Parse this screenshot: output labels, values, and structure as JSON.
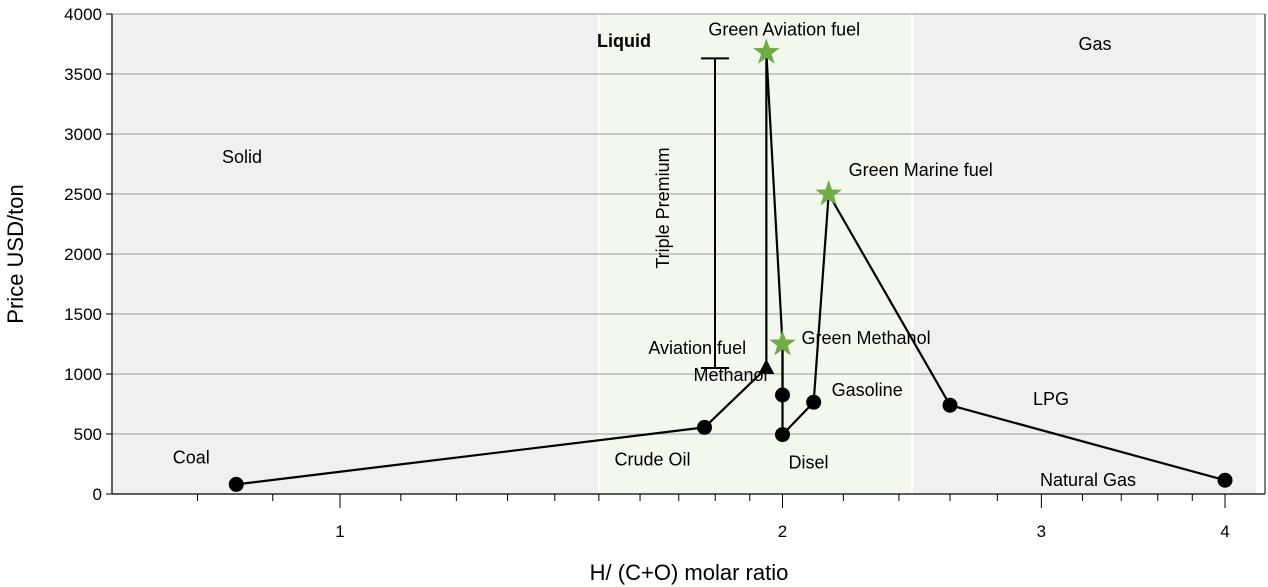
{
  "chart_data": {
    "type": "scatter",
    "xlabel": "H/ (C+O) molar ratio",
    "ylabel": "Price USD/ton",
    "x_scale": "log",
    "xlim": [
      0.6,
      4.2
    ],
    "ylim": [
      0,
      4000
    ],
    "x_ticks": [
      "1",
      "2",
      "3",
      "4"
    ],
    "y_ticks": [
      "0",
      "500",
      "1000",
      "1500",
      "2000",
      "2500",
      "3000",
      "3500",
      "4000"
    ],
    "grid": "horizontal",
    "regions": [
      {
        "label": "Solid",
        "x_from": 0.6,
        "x_to": 1.5,
        "color": "#f0f0f0"
      },
      {
        "label": "Liquid",
        "x_from": 1.5,
        "x_to": 2.45,
        "color": "#f2f8ee"
      },
      {
        "label": "Gas",
        "x_from": 2.45,
        "x_to": 4.2,
        "color": "#f0f0f0"
      }
    ],
    "series": [
      {
        "marker": "circle",
        "color": "#000000",
        "points": [
          {
            "label": "Coal",
            "x": 0.85,
            "y": 80
          },
          {
            "label": "Crude Oil",
            "x": 1.77,
            "y": 555
          },
          {
            "label": "Methanol",
            "x": 2.0,
            "y": 825
          },
          {
            "label": "Disel",
            "x": 2.0,
            "y": 495
          },
          {
            "label": "Gasoline",
            "x": 2.1,
            "y": 765
          },
          {
            "label": "LPG",
            "x": 2.6,
            "y": 740
          },
          {
            "label": "Natural Gas",
            "x": 4.0,
            "y": 115
          }
        ]
      },
      {
        "marker": "triangle",
        "color": "#000000",
        "points": [
          {
            "label": "Aviation fuel",
            "x": 1.95,
            "y": 1050
          }
        ]
      },
      {
        "marker": "star",
        "color": "#70ad47",
        "points": [
          {
            "label": "Green Aviation fuel",
            "x": 1.95,
            "y": 3680
          },
          {
            "label": "Green Marine fuel",
            "x": 2.15,
            "y": 2500
          },
          {
            "label": "Green Methanol",
            "x": 2.0,
            "y": 1250
          }
        ]
      }
    ],
    "connections": [
      [
        "Coal",
        "Crude Oil"
      ],
      [
        "Crude Oil",
        "Aviation fuel"
      ],
      [
        "Aviation fuel",
        "Green Aviation fuel"
      ],
      [
        "Green Aviation fuel",
        "Green Methanol"
      ],
      [
        "Green Methanol",
        "Disel"
      ],
      [
        "Methanol",
        "Green Methanol"
      ],
      [
        "Disel",
        "Gasoline"
      ],
      [
        "Gasoline",
        "Green Marine fuel"
      ],
      [
        "Green Marine fuel",
        "LPG"
      ],
      [
        "LPG",
        "Natural Gas"
      ]
    ],
    "annotations": [
      {
        "text": "Triple Premium",
        "type": "range-bar",
        "y_from": 1050,
        "y_to": 3630
      }
    ]
  }
}
